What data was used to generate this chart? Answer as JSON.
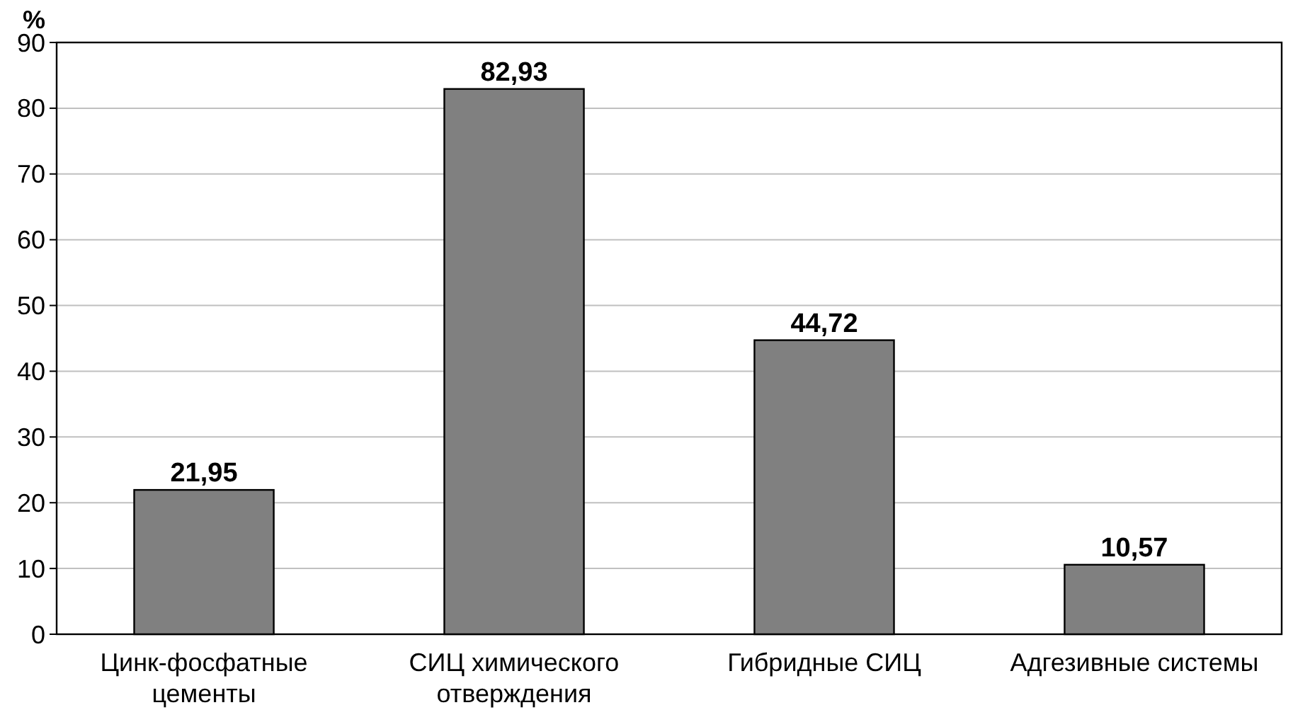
{
  "chart_data": {
    "type": "bar",
    "ylabel": "%",
    "categories": [
      "Цинк-фосфатные цементы",
      "СИЦ химического отверждения",
      "Гибридные СИЦ",
      "Адгезивные системы"
    ],
    "values": [
      21.95,
      82.93,
      44.72,
      10.57
    ],
    "value_labels": [
      "21,95",
      "82,93",
      "44,72",
      "10,57"
    ],
    "color": "#808080",
    "ylim": [
      0,
      90
    ],
    "yticks": [
      0,
      10,
      20,
      30,
      40,
      50,
      60,
      70,
      80,
      90
    ],
    "grid": "y"
  }
}
